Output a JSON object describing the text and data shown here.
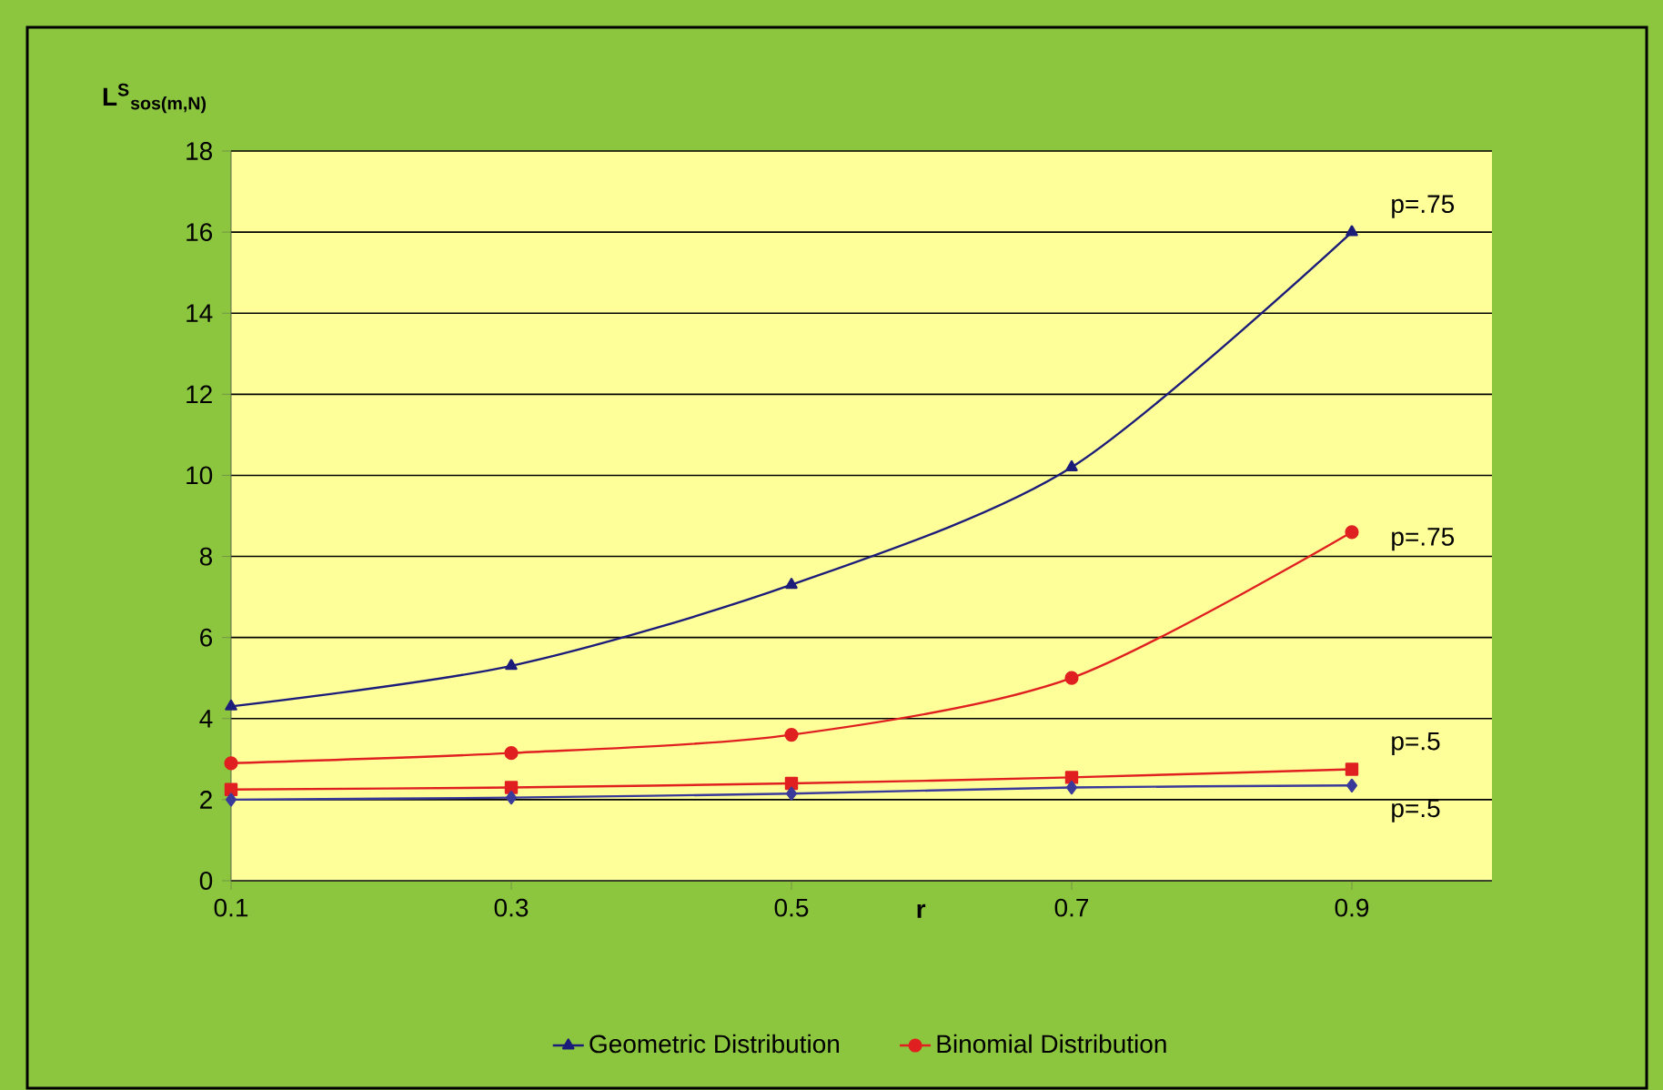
{
  "chart_data": {
    "type": "line",
    "xlabel": "r",
    "ylabel": "L$^{S}$$_{sos(m,N)}$",
    "x": [
      0.1,
      0.3,
      0.5,
      0.7,
      0.9
    ],
    "series": [
      {
        "name": "Geometric Distribution",
        "color": "#1c1c7a",
        "marker": "triangle",
        "values": [
          4.3,
          5.3,
          7.3,
          10.2,
          16.0
        ]
      },
      {
        "name": "Binomial Distribution",
        "color": "#e02020",
        "marker": "circle",
        "values": [
          2.9,
          3.15,
          3.6,
          5.0,
          8.6
        ]
      },
      {
        "color": "#e02020",
        "marker": "square",
        "values": [
          2.25,
          2.3,
          2.4,
          2.55,
          2.75
        ]
      },
      {
        "color": "#3a3a9a",
        "marker": "diamond",
        "values": [
          2.0,
          2.05,
          2.15,
          2.3,
          2.35
        ]
      }
    ],
    "xlim": [
      0.1,
      1.0
    ],
    "xticks": [
      0.1,
      0.3,
      0.5,
      0.7,
      0.9
    ],
    "ylim": [
      0,
      18
    ],
    "yticks": [
      0,
      2,
      4,
      6,
      8,
      10,
      12,
      14,
      16,
      18
    ],
    "grid": "y",
    "legend": "bottom",
    "annotations": [
      "p=.75",
      "p=.75",
      "p=.5",
      "p=.5"
    ]
  }
}
